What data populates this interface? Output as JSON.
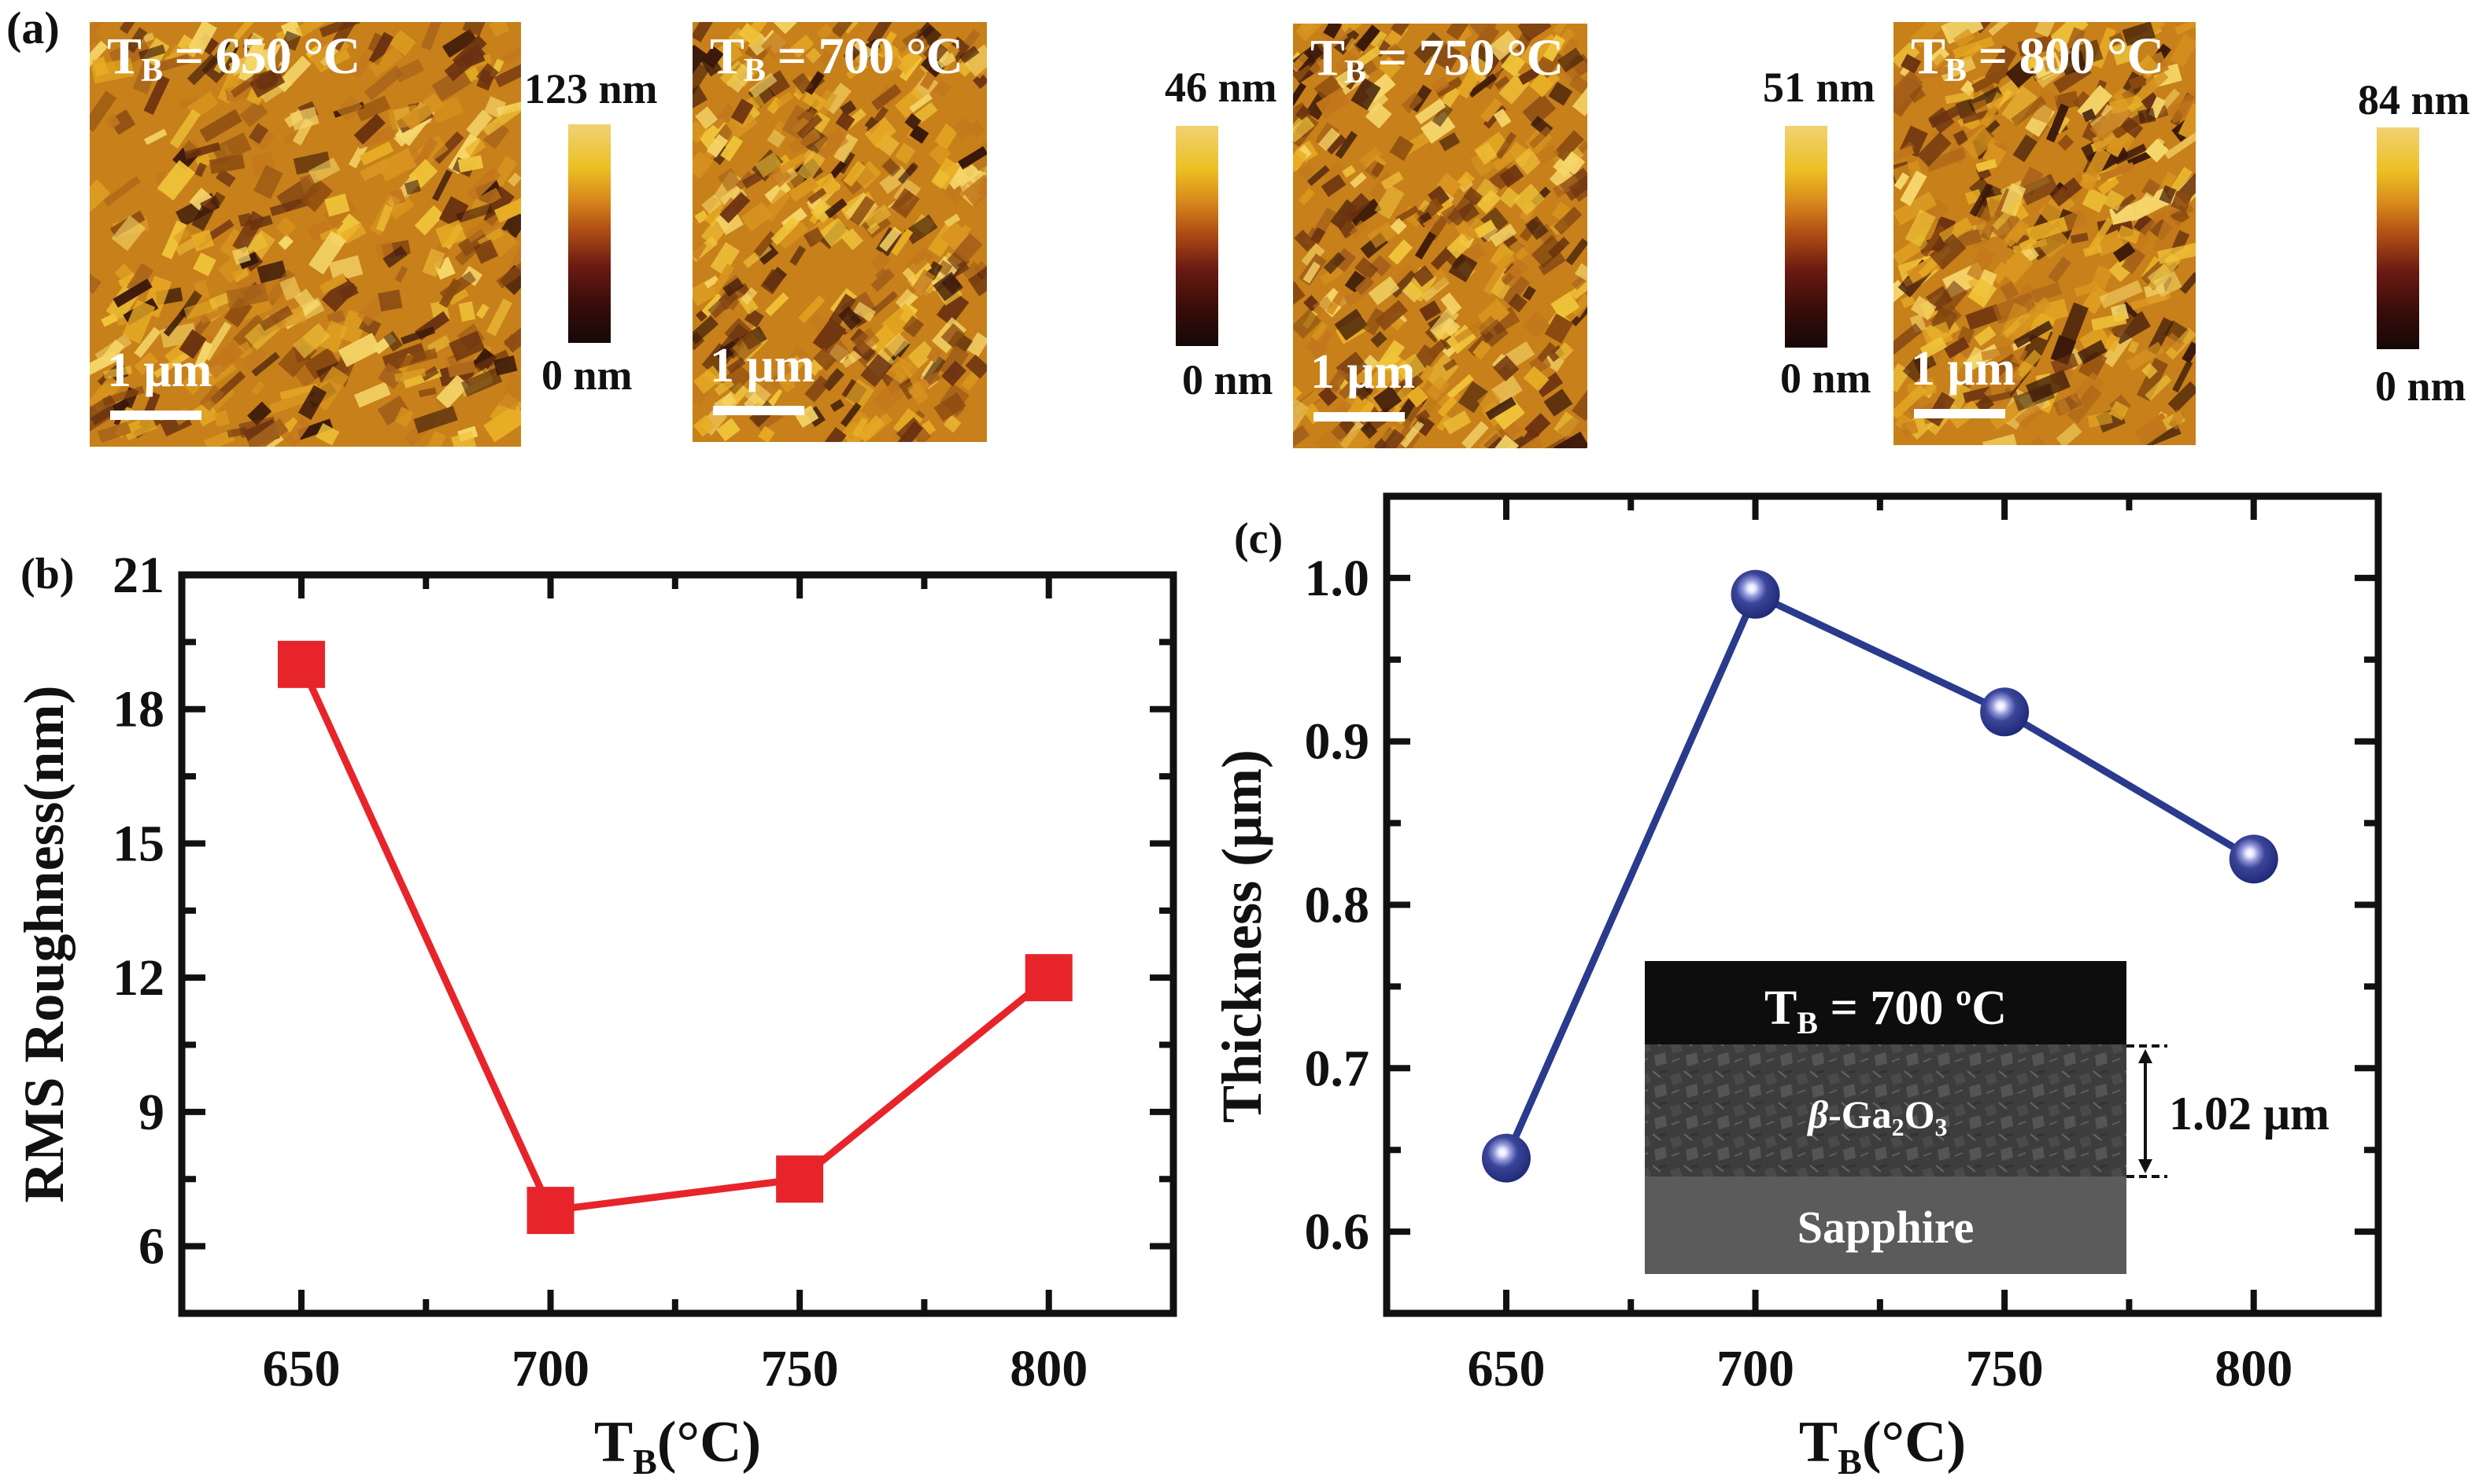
{
  "figure": {
    "panel_a": {
      "label": "(a)",
      "scale_bar_label": "1 μm",
      "colormap": [
        "#150807",
        "#3a0d0a",
        "#6b1a12",
        "#b14f14",
        "#d98a1c",
        "#ecbf22",
        "#f1d273"
      ],
      "images": [
        {
          "title_main": "T",
          "title_sub": "B",
          "title_rest": " = 650 °C",
          "max_label": "123 nm",
          "min_label": "0 nm"
        },
        {
          "title_main": "T",
          "title_sub": "B",
          "title_rest": " = 700 °C",
          "max_label": "46 nm",
          "min_label": "0 nm"
        },
        {
          "title_main": "T",
          "title_sub": "B",
          "title_rest": " = 750 °C",
          "max_label": "51 nm",
          "min_label": "0 nm"
        },
        {
          "title_main": "T",
          "title_sub": "B",
          "title_rest": " = 800 °C",
          "max_label": "84 nm",
          "min_label": "0 nm"
        }
      ]
    },
    "panel_c_inset": {
      "title_main": "T",
      "title_sub": "B",
      "title_rest": " = 700 ºC",
      "layer_label_prefix": "β",
      "layer_label_main": "-Ga",
      "layer_label_sub1": "2",
      "layer_label_mid": "O",
      "layer_label_sub2": "3",
      "substrate_label": "Sapphire",
      "thickness_label": "1.02 μm"
    }
  },
  "chart_data": [
    {
      "id": "b",
      "panel_label": "(b)",
      "type": "line",
      "title": "",
      "xlabel_main": "T",
      "xlabel_sub": "B",
      "xlabel_rest": "(°C)",
      "ylabel": "RMS Roughness(nm)",
      "x": [
        650,
        700,
        750,
        800
      ],
      "series": [
        {
          "name": "RMS Roughness",
          "values": [
            19.0,
            6.8,
            7.5,
            12.0
          ],
          "color": "#e8242b",
          "marker": "square"
        }
      ],
      "xlim": [
        626,
        825
      ],
      "ylim": [
        4.5,
        21
      ],
      "xticks": [
        650,
        700,
        750,
        800
      ],
      "xtick_labels": [
        "650",
        "700",
        "750",
        "800"
      ],
      "yticks": [
        6,
        9,
        12,
        15,
        18,
        21
      ],
      "ytick_labels": [
        "6",
        "9",
        "12",
        "15",
        "18",
        "21"
      ],
      "grid": false,
      "legend": "none"
    },
    {
      "id": "c",
      "panel_label": "(c)",
      "type": "line",
      "title": "",
      "xlabel_main": "T",
      "xlabel_sub": "B",
      "xlabel_rest": "(°C)",
      "ylabel": "Thickness (μm)",
      "x": [
        650,
        700,
        750,
        800
      ],
      "series": [
        {
          "name": "Thickness",
          "values": [
            0.645,
            0.99,
            0.918,
            0.828
          ],
          "color": "#2a3a8c",
          "marker": "sphere"
        }
      ],
      "xlim": [
        626,
        825
      ],
      "ylim": [
        0.55,
        1.05
      ],
      "xticks": [
        650,
        700,
        750,
        800
      ],
      "xtick_labels": [
        "650",
        "700",
        "750",
        "800"
      ],
      "yticks": [
        0.6,
        0.7,
        0.8,
        0.9,
        1.0
      ],
      "ytick_labels": [
        "0.6",
        "0.7",
        "0.8",
        "0.9",
        "1.0"
      ],
      "grid": false,
      "legend": "none"
    }
  ]
}
